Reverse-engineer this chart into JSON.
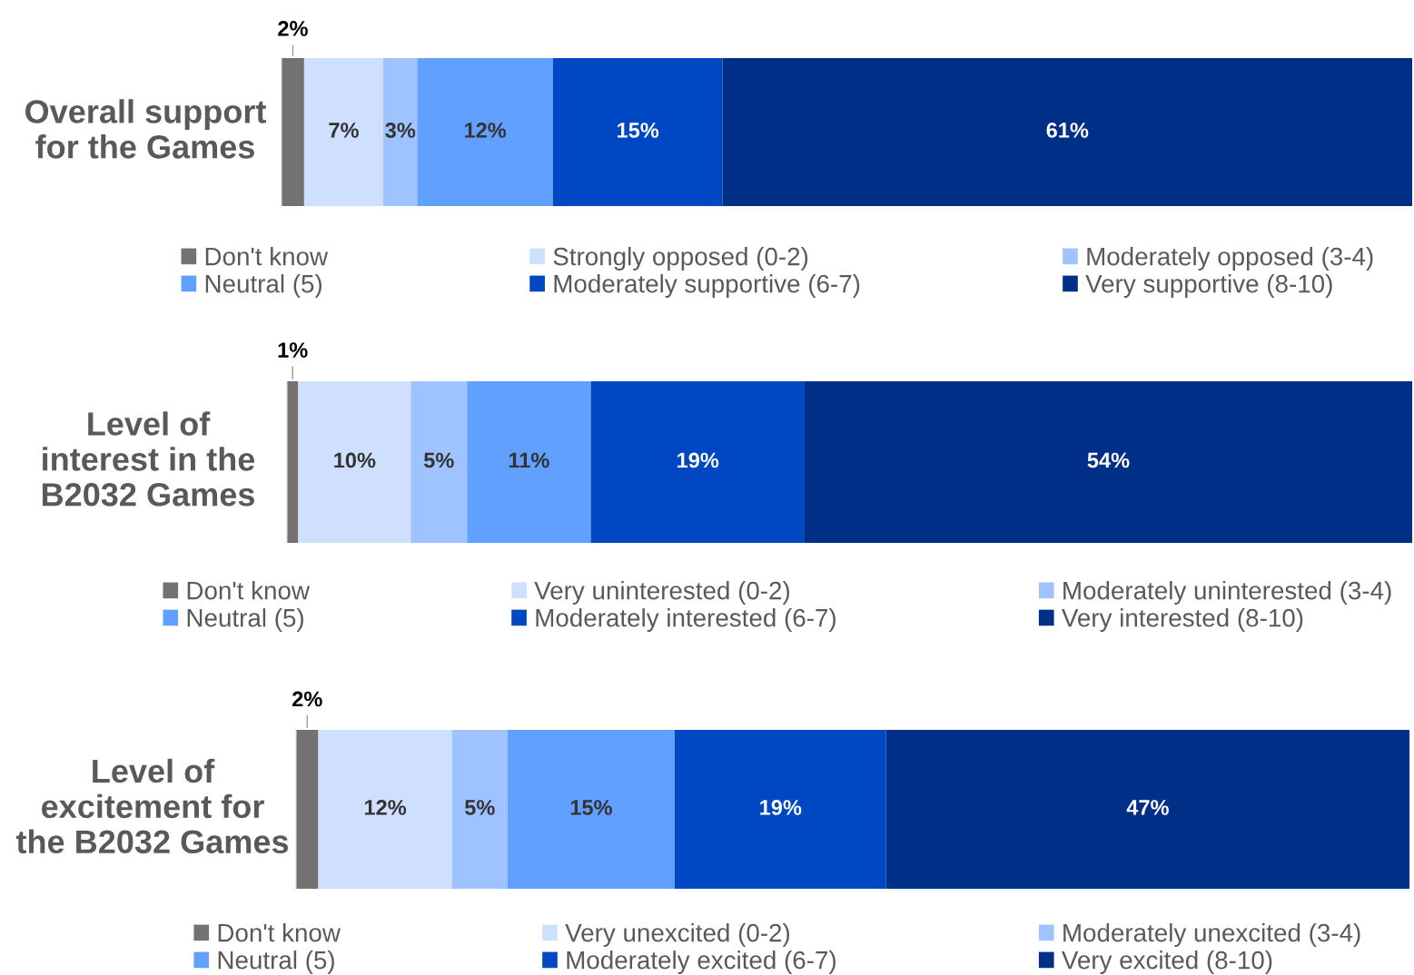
{
  "chart_data": [
    {
      "type": "bar",
      "orientation": "horizontal",
      "stacked": true,
      "categories": [
        "Overall support for the Games"
      ],
      "tick_labels": "y",
      "legend": "bottom",
      "series": [
        {
          "name": "Don't know",
          "color": "#767171",
          "values": [
            2
          ],
          "value_labels": [
            "2%"
          ]
        },
        {
          "name": "Strongly opposed (0-2)",
          "color": "#cfe0ff",
          "values": [
            7
          ],
          "value_labels": [
            "7%"
          ]
        },
        {
          "name": "Moderately opposed (3-4)",
          "color": "#9fc3ff",
          "values": [
            3
          ],
          "value_labels": [
            "3%"
          ]
        },
        {
          "name": "Neutral (5)",
          "color": "#62a0ff",
          "values": [
            12
          ],
          "value_labels": [
            "12%"
          ]
        },
        {
          "name": "Moderately supportive (6-7)",
          "color": "#0047c4",
          "values": [
            15
          ],
          "value_labels": [
            "15%"
          ]
        },
        {
          "name": "Very supportive (8-10)",
          "color": "#002f87",
          "values": [
            61
          ],
          "value_labels": [
            "61%"
          ]
        }
      ]
    },
    {
      "type": "bar",
      "orientation": "horizontal",
      "stacked": true,
      "categories": [
        "Level of interest in the B2032 Games"
      ],
      "tick_labels": "y",
      "legend": "bottom",
      "series": [
        {
          "name": "Don't know",
          "color": "#767171",
          "values": [
            1
          ],
          "value_labels": [
            "1%"
          ]
        },
        {
          "name": "Very uninterested (0-2)",
          "color": "#cfe0ff",
          "values": [
            10
          ],
          "value_labels": [
            "10%"
          ]
        },
        {
          "name": "Moderately uninterested (3-4)",
          "color": "#9fc3ff",
          "values": [
            5
          ],
          "value_labels": [
            "5%"
          ]
        },
        {
          "name": "Neutral (5)",
          "color": "#62a0ff",
          "values": [
            11
          ],
          "value_labels": [
            "11%"
          ]
        },
        {
          "name": "Moderately interested (6-7)",
          "color": "#0047c4",
          "values": [
            19
          ],
          "value_labels": [
            "19%"
          ]
        },
        {
          "name": "Very interested (8-10)",
          "color": "#002f87",
          "values": [
            54
          ],
          "value_labels": [
            "54%"
          ]
        }
      ]
    },
    {
      "type": "bar",
      "orientation": "horizontal",
      "stacked": true,
      "categories": [
        "Level of excitement for the B2032 Games"
      ],
      "tick_labels": "y",
      "legend": "bottom",
      "series": [
        {
          "name": "Don't know",
          "color": "#767171",
          "values": [
            2
          ],
          "value_labels": [
            "2%"
          ]
        },
        {
          "name": "Very unexcited (0-2)",
          "color": "#cfe0ff",
          "values": [
            12
          ],
          "value_labels": [
            "12%"
          ]
        },
        {
          "name": "Moderately unexcited (3-4)",
          "color": "#9fc3ff",
          "values": [
            5
          ],
          "value_labels": [
            "5%"
          ]
        },
        {
          "name": "Neutral (5)",
          "color": "#62a0ff",
          "values": [
            15
          ],
          "value_labels": [
            "15%"
          ]
        },
        {
          "name": "Moderately excited (6-7)",
          "color": "#0047c4",
          "values": [
            19
          ],
          "value_labels": [
            "19%"
          ]
        },
        {
          "name": "Very excited (8-10)",
          "color": "#002f87",
          "values": [
            47
          ],
          "value_labels": [
            "47%"
          ]
        }
      ]
    }
  ]
}
